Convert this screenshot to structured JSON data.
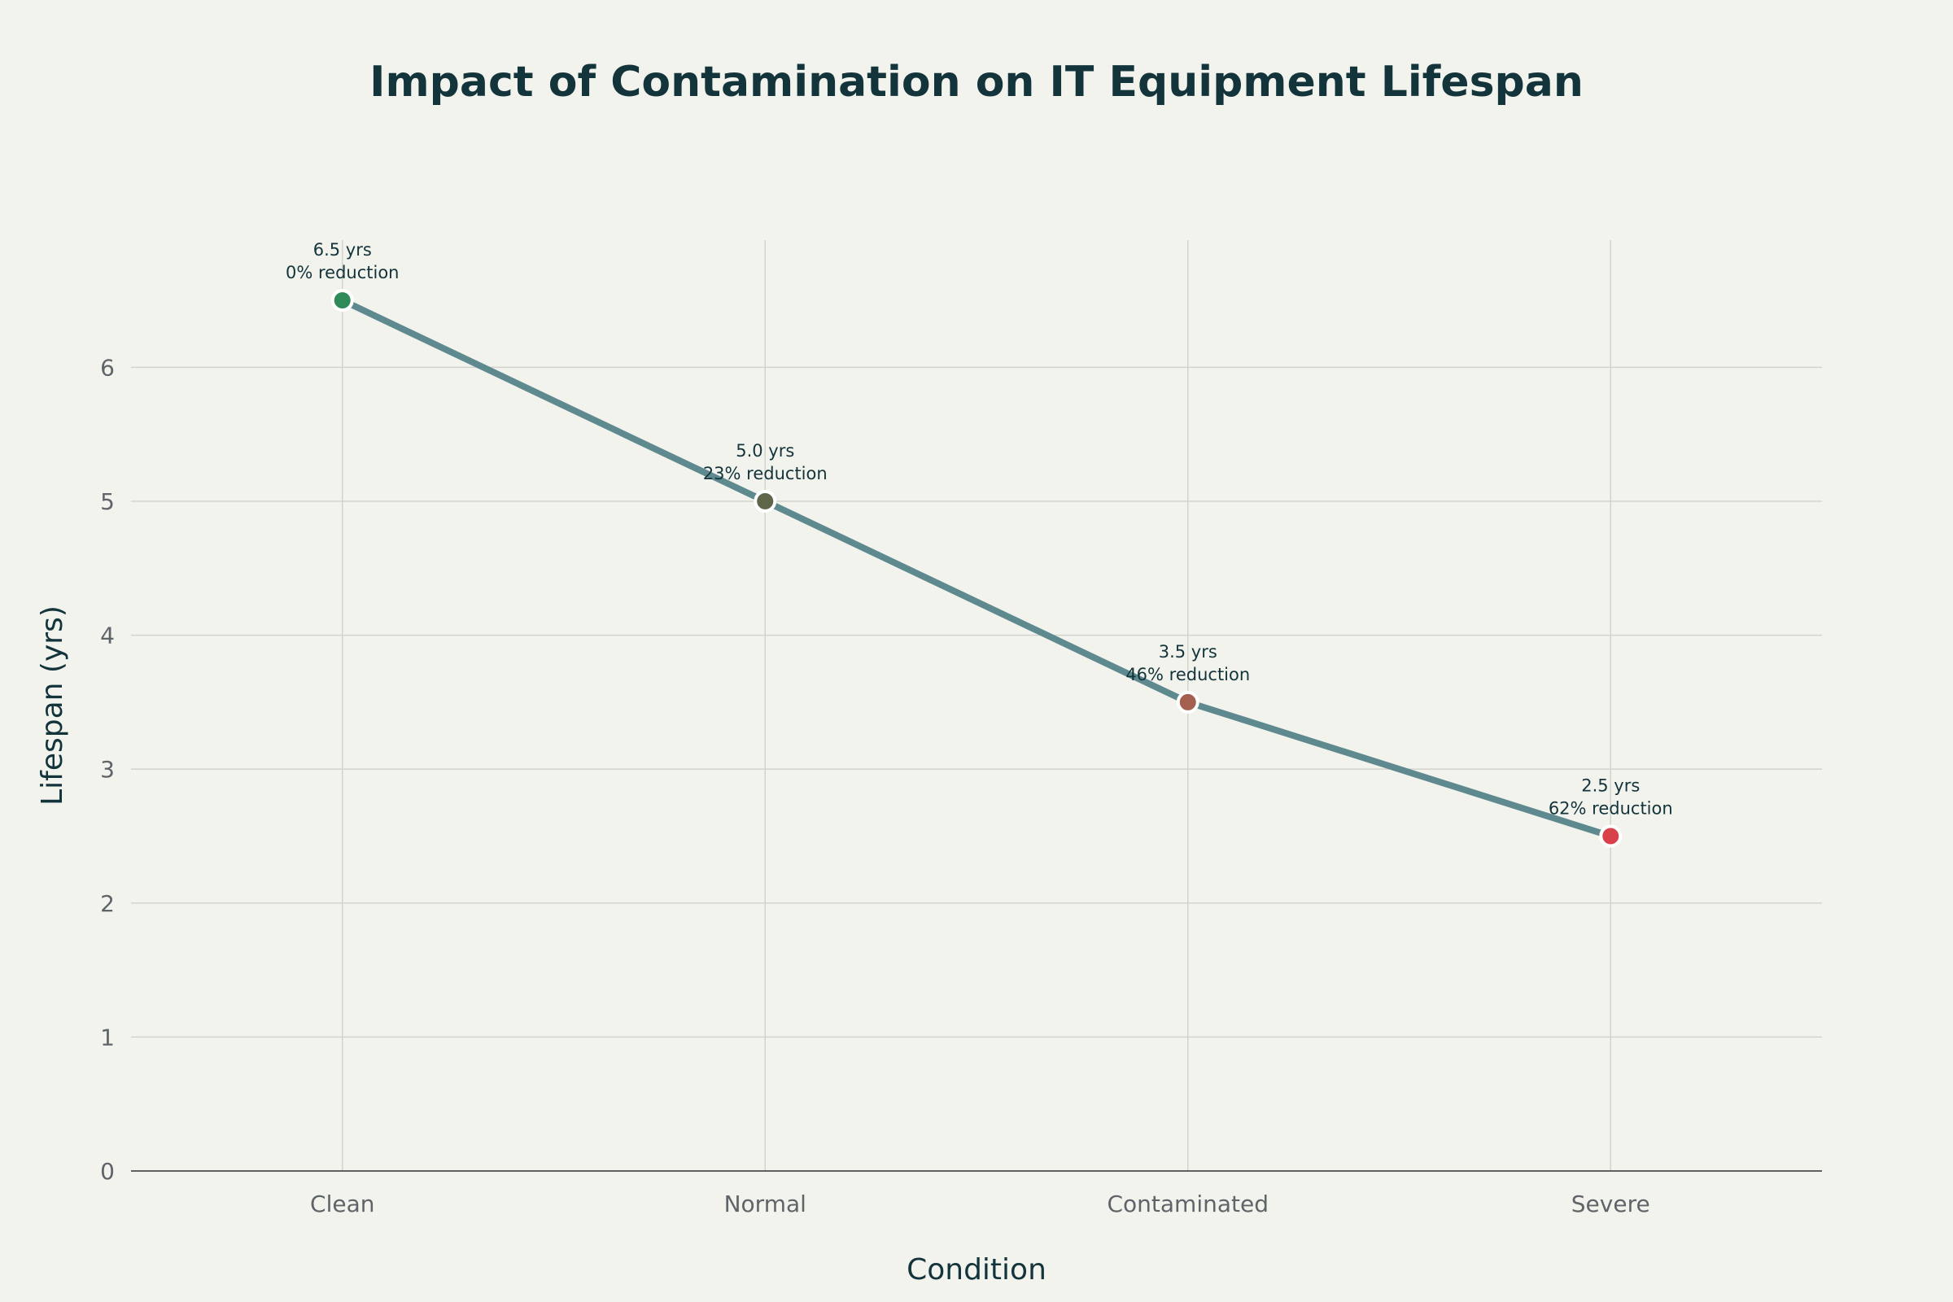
{
  "chart_data": {
    "type": "line",
    "title": "Impact of Contamination on IT Equipment Lifespan",
    "xlabel": "Condition",
    "ylabel": "Lifespan (yrs)",
    "categories": [
      "Clean",
      "Normal",
      "Contaminated",
      "Severe"
    ],
    "values": [
      6.5,
      5.0,
      3.5,
      2.5
    ],
    "labels": [
      [
        "6.5 yrs",
        "0% reduction"
      ],
      [
        "5.0 yrs",
        "23% reduction"
      ],
      [
        "3.5 yrs",
        "46% reduction"
      ],
      [
        "2.5 yrs",
        "62% reduction"
      ]
    ],
    "point_colors": [
      "#2E8B57",
      "#5E6548",
      "#A45F4F",
      "#D9414A"
    ],
    "line_color": "#5E8A8F",
    "ylim": [
      0,
      6.95
    ],
    "yticks": [
      0,
      1,
      2,
      3,
      4,
      5,
      6
    ],
    "grid": true,
    "legend": "none"
  }
}
